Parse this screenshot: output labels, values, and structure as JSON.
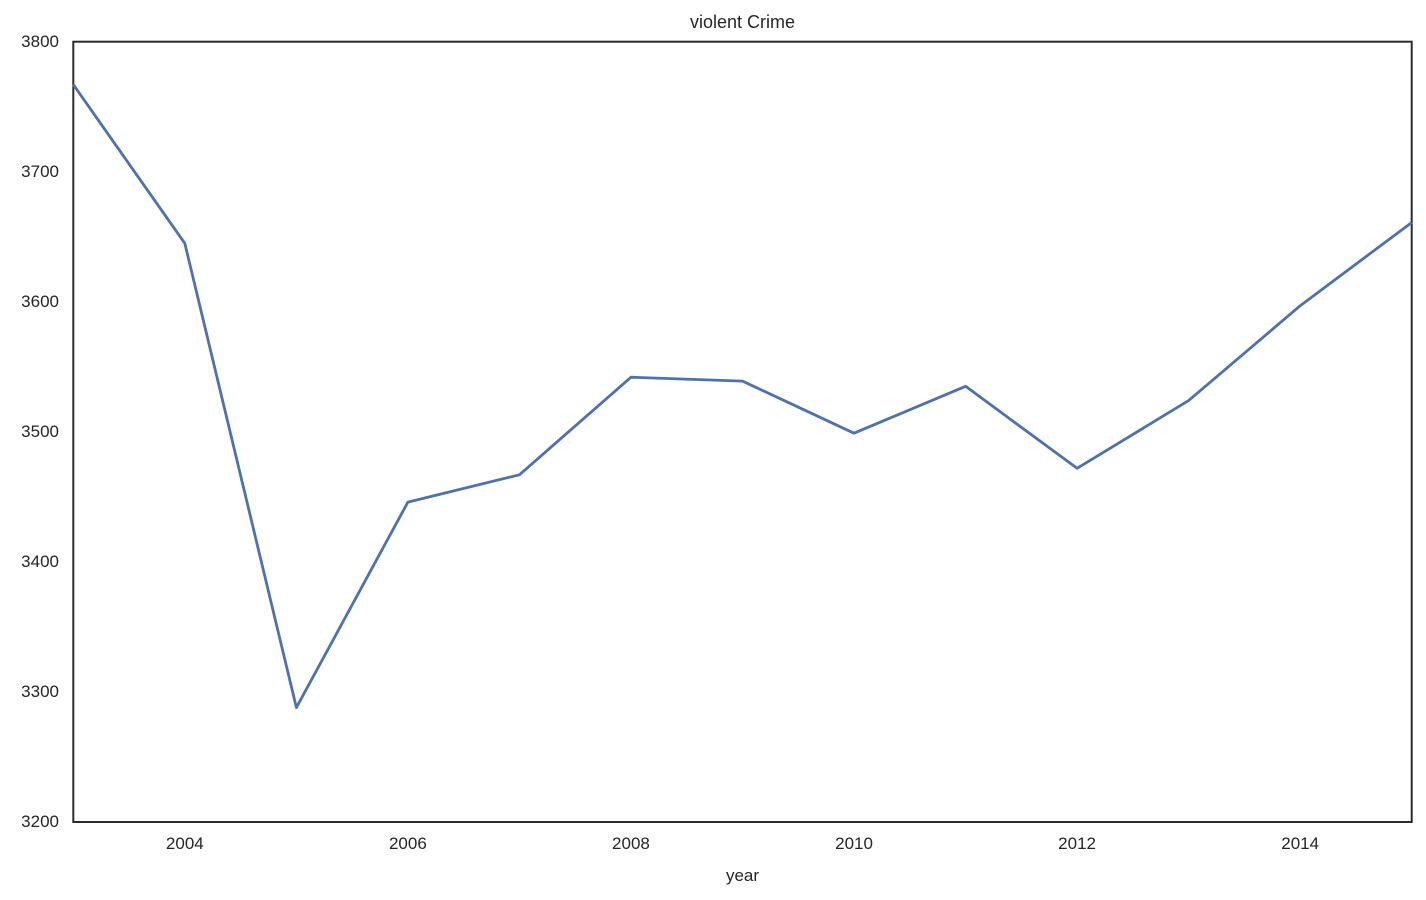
{
  "figure": {
    "background": "#ffffff"
  },
  "chart_data": {
    "type": "line",
    "title": "violent Crime",
    "xlabel": "year",
    "ylabel": "",
    "x": [
      2003,
      2004,
      2005,
      2006,
      2007,
      2008,
      2009,
      2010,
      2011,
      2012,
      2013,
      2014,
      2015
    ],
    "series": [
      {
        "name": "violent crime",
        "color": "#4C72B0",
        "values": [
          3767,
          3645,
          3288,
          3446,
          3467,
          3542,
          3539,
          3499,
          3535,
          3472,
          3524,
          3597,
          3661
        ]
      }
    ],
    "xlim": [
      2003,
      2015
    ],
    "ylim": [
      3200,
      3800
    ],
    "xticks": [
      2004,
      2006,
      2008,
      2010,
      2012,
      2014
    ],
    "yticks": [
      3200,
      3300,
      3400,
      3500,
      3600,
      3700,
      3800
    ],
    "grid": false,
    "legend_position": "none",
    "frame_color": "#2b2b2b",
    "text_color": "#262626",
    "line_width": 2.8
  }
}
